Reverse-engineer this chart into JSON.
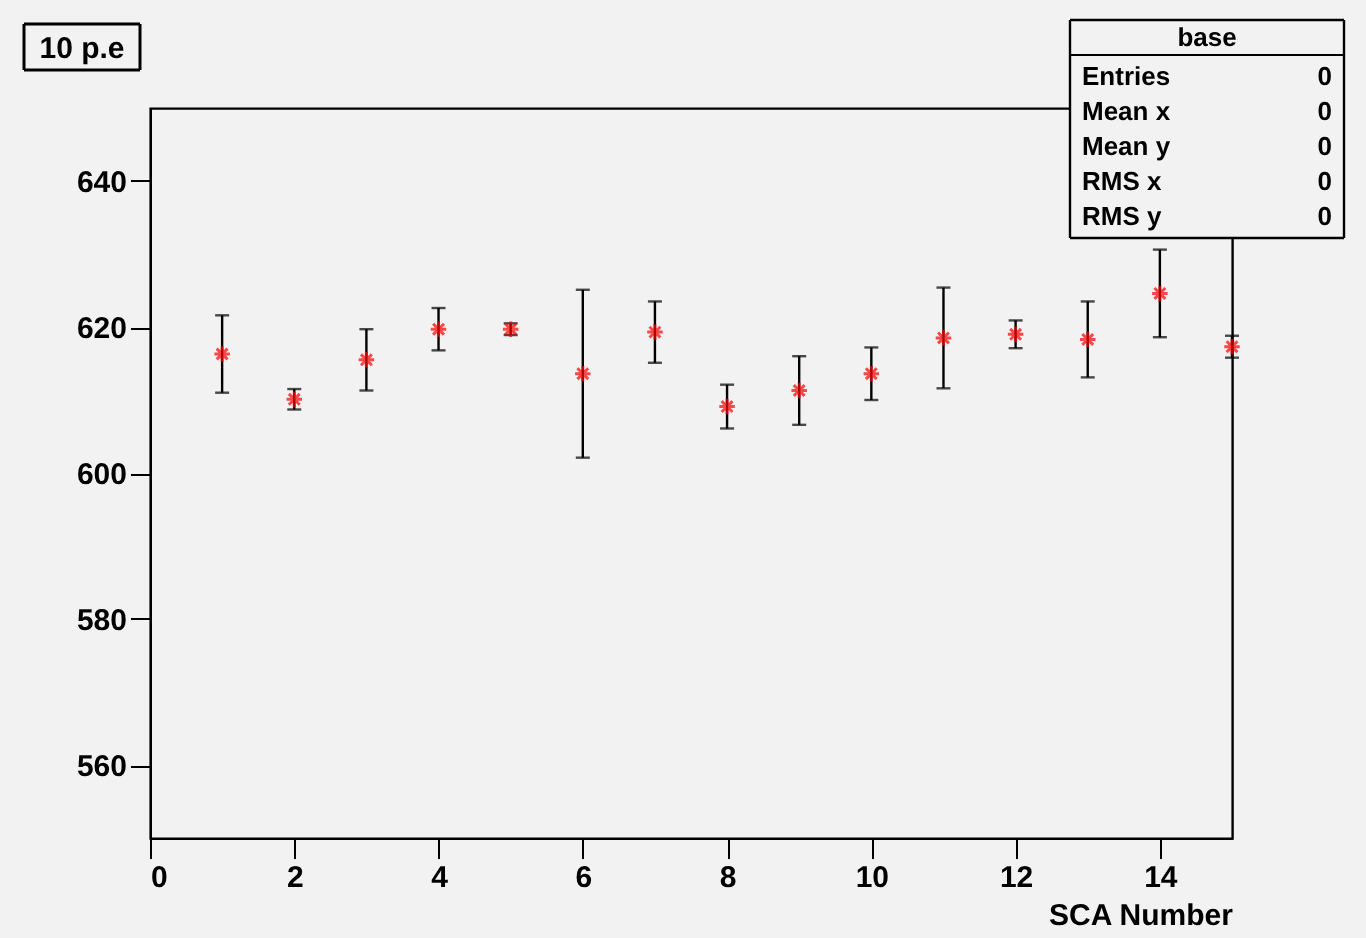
{
  "chart_data": {
    "type": "scatter",
    "title": "10 p.e",
    "xlabel": "SCA Number",
    "x": [
      1,
      2,
      3,
      4,
      5,
      6,
      7,
      8,
      9,
      10,
      11,
      12,
      13,
      14,
      15
    ],
    "series": [
      {
        "color": "#ff0000",
        "values": [
          616.3,
          610.1,
          615.5,
          619.7,
          619.7,
          613.6,
          619.3,
          609.1,
          611.3,
          613.6,
          618.5,
          619.0,
          618.3,
          624.6,
          617.3
        ],
        "errors": [
          5.3,
          1.4,
          4.2,
          2.9,
          0.8,
          11.5,
          4.2,
          3.0,
          4.7,
          3.6,
          6.9,
          1.9,
          5.2,
          6.0,
          1.5
        ]
      }
    ],
    "xlim": [
      0,
      15
    ],
    "ylim": [
      550,
      650
    ],
    "xticks": [
      0,
      2,
      4,
      6,
      8,
      10,
      12,
      14
    ],
    "yticks": [
      560,
      580,
      600,
      620,
      640
    ],
    "marker": "cross",
    "grid": false,
    "annotations": [
      "base",
      "Entries 0",
      "Mean x 0",
      "Mean y 0",
      "RMS x 0",
      "RMS y 0"
    ]
  }
}
